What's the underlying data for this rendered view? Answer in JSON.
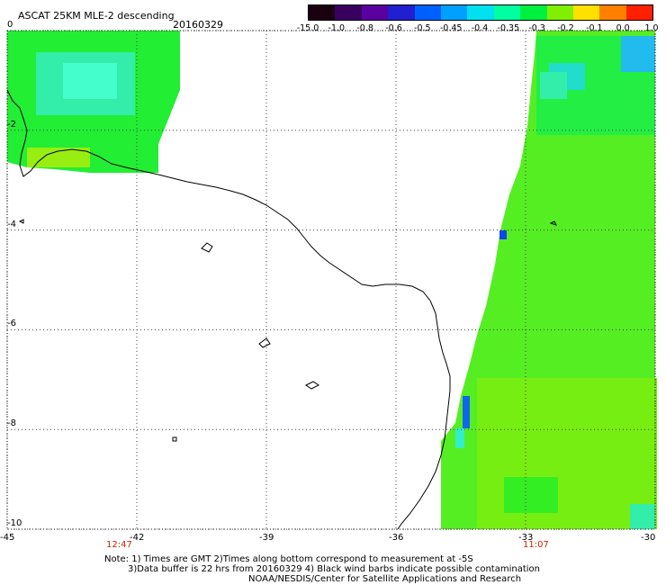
{
  "header": {
    "title": "ASCAT 25KM MLE-2 descending",
    "date": "20160329"
  },
  "colorbar": {
    "labels": [
      "-15.0",
      "-1.0",
      "-0.8",
      "-0.6",
      "-0.5",
      "-0.45",
      "-0.4",
      "-0.35",
      "-0.3",
      "-0.2",
      "-0.1",
      "0.0",
      "1.0"
    ],
    "colors": [
      "#1a0010",
      "#3a0060",
      "#5a00a0",
      "#2020d0",
      "#0060ff",
      "#00a0ff",
      "#00e0f0",
      "#00ffa0",
      "#00f040",
      "#80f000",
      "#ffe000",
      "#ff8000",
      "#ff2000"
    ]
  },
  "axes": {
    "y_ticks": [
      "0",
      "-2",
      "-4",
      "-6",
      "-8",
      "-10"
    ],
    "x_ticks": [
      "-45",
      "-42",
      "-39",
      "-36",
      "-33",
      "-30"
    ],
    "times": {
      "left": "12:47",
      "right": "11:07"
    }
  },
  "map": {
    "lon_range": [
      -45,
      -30
    ],
    "lat_range": [
      -10,
      0
    ],
    "palette": {
      "coast": "#000000",
      "grid": "#555555",
      "bg": "#ffffff"
    }
  },
  "footer": {
    "note_line1": "Note: 1) Times are GMT 2)Times along bottom correspond to measurement at -5S",
    "note_line2": "3)Data buffer is 22 hrs from 20160329 4) Black wind barbs indicate possible contamination",
    "credit": "NOAA/NESDIS/Center for Satellite Applications and Research"
  }
}
